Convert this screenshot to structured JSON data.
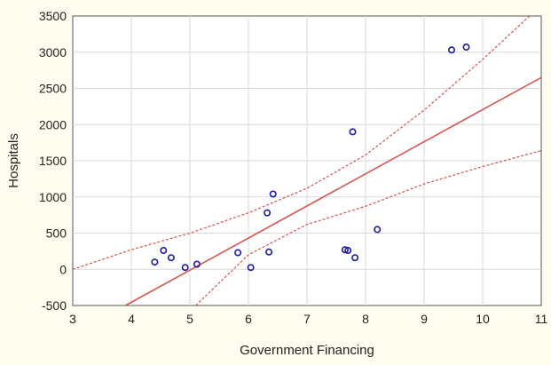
{
  "chart_data": {
    "type": "scatter",
    "xlabel": "Government Financing",
    "ylabel": "Hospitals",
    "xlim": [
      3,
      11
    ],
    "ylim": [
      -500,
      3500
    ],
    "x_ticks": [
      3,
      4,
      5,
      6,
      7,
      8,
      9,
      10,
      11
    ],
    "y_ticks": [
      -500,
      0,
      500,
      1000,
      1500,
      2000,
      2500,
      3000,
      3500
    ],
    "grid": true,
    "points": [
      {
        "x": 4.4,
        "y": 100
      },
      {
        "x": 4.55,
        "y": 260
      },
      {
        "x": 4.68,
        "y": 160
      },
      {
        "x": 4.92,
        "y": 25
      },
      {
        "x": 5.12,
        "y": 70
      },
      {
        "x": 5.82,
        "y": 230
      },
      {
        "x": 6.04,
        "y": 25
      },
      {
        "x": 6.32,
        "y": 780
      },
      {
        "x": 6.35,
        "y": 240
      },
      {
        "x": 6.42,
        "y": 1040
      },
      {
        "x": 7.65,
        "y": 270
      },
      {
        "x": 7.7,
        "y": 260
      },
      {
        "x": 7.78,
        "y": 1900
      },
      {
        "x": 7.82,
        "y": 160
      },
      {
        "x": 8.2,
        "y": 550
      },
      {
        "x": 9.47,
        "y": 3030
      },
      {
        "x": 9.72,
        "y": 3070
      }
    ],
    "regression_line": {
      "x": [
        3.9,
        11
      ],
      "y": [
        -500,
        2650
      ]
    },
    "confidence_upper": {
      "x": [
        3,
        4,
        5,
        6,
        7,
        8,
        9,
        10,
        10.8
      ],
      "y": [
        0,
        270,
        500,
        780,
        1120,
        1580,
        2200,
        2900,
        3500
      ]
    },
    "confidence_lower": {
      "x": [
        5.1,
        6,
        7,
        8,
        9,
        10,
        11
      ],
      "y": [
        -500,
        200,
        620,
        870,
        1180,
        1420,
        1640
      ]
    },
    "colors": {
      "background": "#fffdf0",
      "plot_area": "#ffffff",
      "grid": "#d9d9d9",
      "regression": "#d9534f",
      "confidence": "#d9534f",
      "points": "#1a1aa6"
    }
  }
}
